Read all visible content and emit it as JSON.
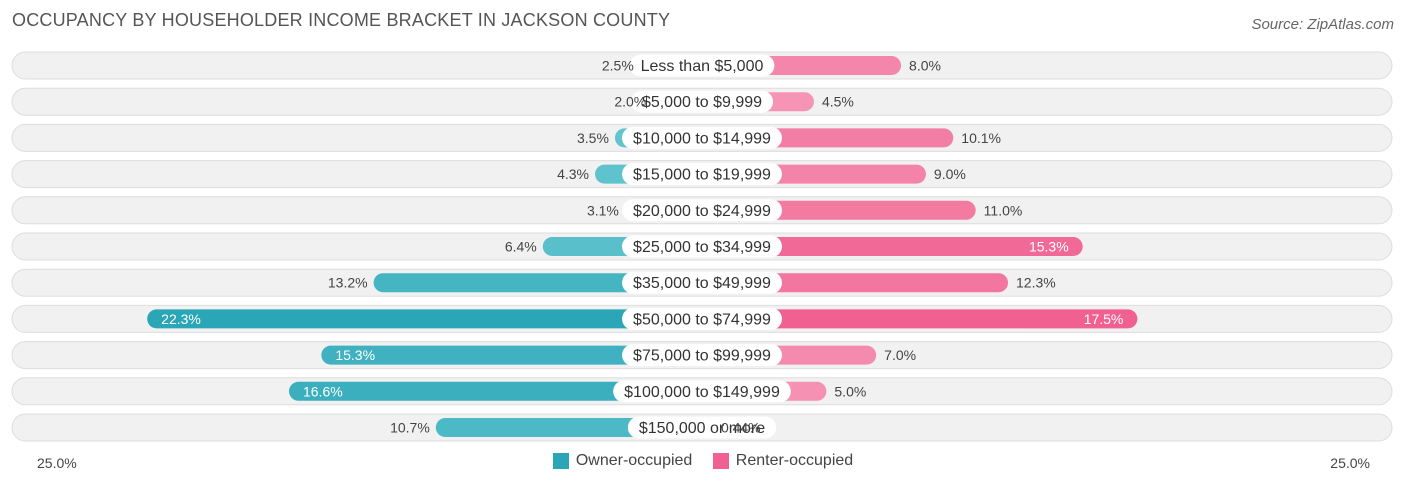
{
  "header": {
    "title": "OCCUPANCY BY HOUSEHOLDER INCOME BRACKET IN JACKSON COUNTY",
    "source": "Source: ZipAtlas.com"
  },
  "colors": {
    "owner_light": "#6ccad3",
    "owner_dark": "#2aa6b7",
    "renter_light": "#f7a6c0",
    "renter_dark": "#f06191",
    "row_bg": "#f1f1f1",
    "row_border": "#dddddd"
  },
  "chart_data": {
    "type": "bar",
    "orientation": "horizontal-diverging",
    "title": "OCCUPANCY BY HOUSEHOLDER INCOME BRACKET IN JACKSON COUNTY",
    "categories": [
      "Less than $5,000",
      "$5,000 to $9,999",
      "$10,000 to $14,999",
      "$15,000 to $19,999",
      "$20,000 to $24,999",
      "$25,000 to $34,999",
      "$35,000 to $49,999",
      "$50,000 to $74,999",
      "$75,000 to $99,999",
      "$100,000 to $149,999",
      "$150,000 or more"
    ],
    "series": [
      {
        "name": "Owner-occupied",
        "values": [
          2.5,
          2.0,
          3.5,
          4.3,
          3.1,
          6.4,
          13.2,
          22.3,
          15.3,
          16.6,
          10.7
        ],
        "labels": [
          "2.5%",
          "2.0%",
          "3.5%",
          "4.3%",
          "3.1%",
          "6.4%",
          "13.2%",
          "22.3%",
          "15.3%",
          "16.6%",
          "10.7%"
        ]
      },
      {
        "name": "Renter-occupied",
        "values": [
          8.0,
          4.5,
          10.1,
          9.0,
          11.0,
          15.3,
          12.3,
          17.5,
          7.0,
          5.0,
          0.44
        ],
        "labels": [
          "8.0%",
          "4.5%",
          "10.1%",
          "9.0%",
          "11.0%",
          "15.3%",
          "12.3%",
          "17.5%",
          "7.0%",
          "5.0%",
          "0.44%"
        ]
      }
    ],
    "axis": {
      "left_label": "25.0%",
      "right_label": "25.0%",
      "max": 25.0
    },
    "legend": [
      "Owner-occupied",
      "Renter-occupied"
    ]
  }
}
